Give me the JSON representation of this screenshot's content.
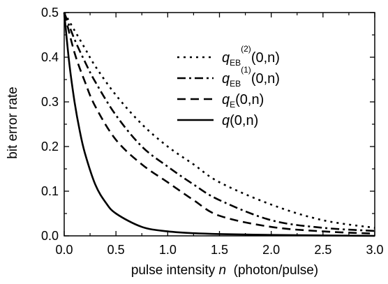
{
  "chart_data": {
    "type": "line",
    "xlabel": {
      "text": "pulse intensity ",
      "var": "n",
      "unit": "  (photon/pulse)"
    },
    "ylabel": "bit error rate",
    "xlim": [
      0.0,
      3.0
    ],
    "ylim": [
      0.0,
      0.5
    ],
    "x_ticks": [
      "0.0",
      "0.5",
      "1.0",
      "1.5",
      "2.0",
      "2.5",
      "3.0"
    ],
    "y_ticks": [
      "0.0",
      "0.1",
      "0.2",
      "0.3",
      "0.4",
      "0.5"
    ],
    "legend_position": "top-right",
    "series": [
      {
        "label": {
          "sym": "q",
          "sub": "EB",
          "sup": "(2)",
          "arg": "(0,n)"
        },
        "style": "dotted",
        "x": [
          0,
          0.1,
          0.2,
          0.3,
          0.5,
          0.75,
          1.0,
          1.25,
          1.5,
          2.0,
          2.5,
          3.0
        ],
        "values": [
          0.5,
          0.46,
          0.42,
          0.38,
          0.315,
          0.25,
          0.2,
          0.16,
          0.12,
          0.07,
          0.035,
          0.018
        ]
      },
      {
        "label": {
          "sym": "q",
          "sub": "EB",
          "sup": "(1)",
          "arg": "(0,n)"
        },
        "style": "dashdot",
        "x": [
          0,
          0.1,
          0.2,
          0.3,
          0.5,
          0.75,
          1.0,
          1.25,
          1.5,
          2.0,
          2.5,
          3.0
        ],
        "values": [
          0.5,
          0.44,
          0.39,
          0.345,
          0.27,
          0.2,
          0.155,
          0.115,
          0.08,
          0.035,
          0.018,
          0.011
        ]
      },
      {
        "label": {
          "sym": "q",
          "sub": "E",
          "sup": "",
          "arg": "(0,n)"
        },
        "style": "dashed",
        "x": [
          0,
          0.1,
          0.2,
          0.3,
          0.5,
          0.75,
          1.0,
          1.25,
          1.5,
          2.0,
          2.5,
          3.0
        ],
        "values": [
          0.5,
          0.41,
          0.345,
          0.29,
          0.215,
          0.16,
          0.12,
          0.08,
          0.045,
          0.02,
          0.01,
          0.005
        ]
      },
      {
        "label": {
          "sym": "q",
          "sub": "",
          "sup": "",
          "arg": "(0,n)"
        },
        "style": "solid",
        "x": [
          0,
          0.05,
          0.1,
          0.15,
          0.2,
          0.3,
          0.4,
          0.5,
          0.75,
          1.0,
          1.25,
          1.5,
          2.0,
          2.5,
          3.0
        ],
        "values": [
          0.5,
          0.385,
          0.3,
          0.235,
          0.185,
          0.115,
          0.075,
          0.05,
          0.02,
          0.01,
          0.006,
          0.004,
          0.002,
          0.001,
          0.0
        ]
      }
    ]
  }
}
